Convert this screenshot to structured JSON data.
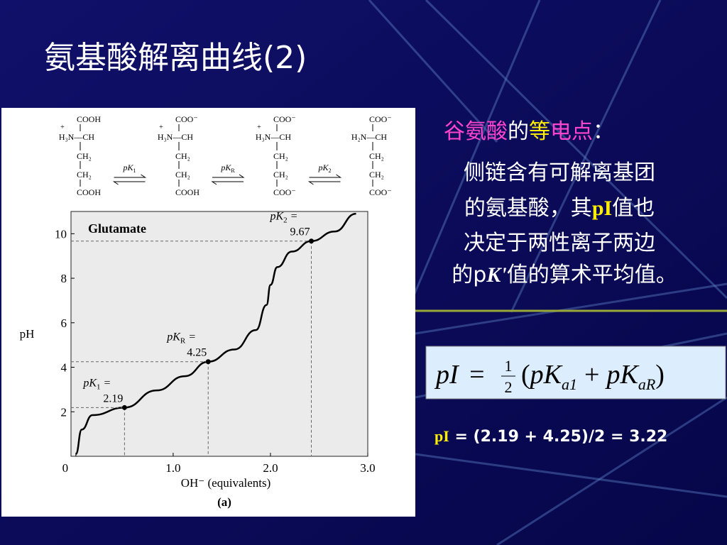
{
  "title": "氨基酸解离曲线(2)",
  "figure": {
    "structures": [
      {
        "charge": "+",
        "rows": [
          "COOH",
          "H₃N—CH",
          "CH₂",
          "CH₂",
          "COOH"
        ]
      },
      {
        "charge": "+",
        "rows": [
          "COO⁻",
          "H₃N—CH",
          "CH₂",
          "CH₂",
          "COOH"
        ]
      },
      {
        "charge": "+",
        "rows": [
          "COO⁻",
          "H₃N—CH",
          "CH₂",
          "CH₂",
          "COO⁻"
        ]
      },
      {
        "rows": [
          "COO⁻",
          "H₂N—CH",
          "CH₂",
          "CH₂",
          "COO⁻"
        ]
      }
    ],
    "equilibria": [
      {
        "base": "pK",
        "sub": "1"
      },
      {
        "base": "pK",
        "sub": "R"
      },
      {
        "base": "pK",
        "sub": "2"
      }
    ],
    "chart": {
      "type": "line",
      "title": "Glutamate",
      "ylabel": "pH",
      "xlabel": "OH⁻ (equivalents)",
      "caption": "(a)",
      "xlim": [
        -0.05,
        3.0
      ],
      "ylim": [
        0,
        11
      ],
      "xticks": [
        0,
        {
          "value": 1,
          "label": "1.0"
        },
        {
          "value": 2,
          "label": "2.0"
        },
        {
          "value": 3,
          "label": "3.0"
        }
      ],
      "yticks": [
        2,
        4,
        6,
        8,
        10
      ],
      "series": [
        {
          "color": "#000000",
          "x": [
            0,
            0.06,
            0.17,
            0.5,
            0.83,
            1.12,
            1.36,
            1.63,
            1.85,
            1.96,
            2.0,
            2.07,
            2.22,
            2.42,
            2.66,
            2.88
          ],
          "values": [
            0.1,
            1.2,
            1.85,
            2.19,
            2.96,
            3.6,
            4.25,
            4.8,
            5.67,
            6.8,
            7.7,
            8.5,
            9.2,
            9.67,
            10.1,
            10.9
          ]
        }
      ],
      "points": {
        "x": [
          0.5,
          1.36,
          2.42
        ],
        "values": [
          2.19,
          4.25,
          9.67
        ],
        "labels": [
          {
            "base": "pK",
            "sub": "1",
            "eq": "="
          },
          {
            "base": "pK",
            "sub": "R",
            "eq": "="
          },
          {
            "base": "pK",
            "sub": "2",
            "eq": "="
          }
        ]
      }
    }
  },
  "text": {
    "heading": [
      "谷氨酸",
      "的",
      "等",
      "电点",
      "："
    ],
    "lines": [
      [
        "侧链含有可解离基团"
      ],
      [
        "的氨基酸，其",
        "pI",
        "值也"
      ],
      [
        "决定于两性离子两边"
      ],
      [
        "的p",
        "K'",
        "值的算术平均值。"
      ]
    ]
  },
  "formula": {
    "lhs": "pI",
    "eq": "=",
    "num": "1",
    "den": "2",
    "open": "(",
    "t1": "pK",
    "s1": "a1",
    "plus": "+",
    "t2": "pK",
    "s2": "aR",
    "close": ")"
  },
  "calc": {
    "pI": "pI",
    "rest": "= (2.19 + 4.25)/2 = 3.22"
  }
}
